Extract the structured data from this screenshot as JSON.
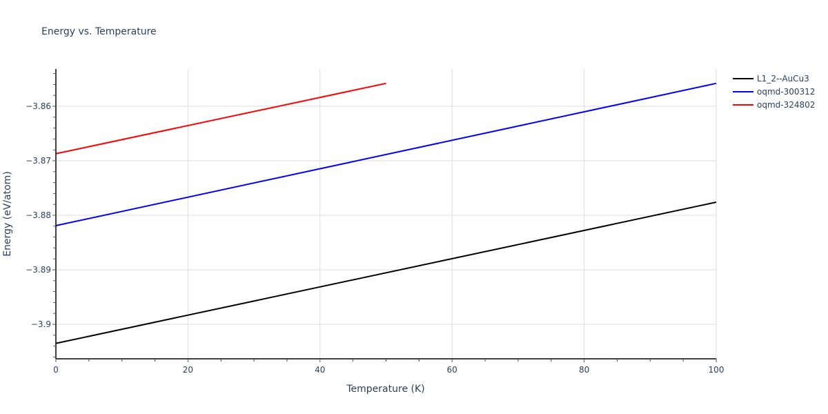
{
  "chart_data": {
    "type": "line",
    "title": "Energy vs. Temperature",
    "xlabel": "Temperature (K)",
    "ylabel": "Energy (eV/atom)",
    "xlim": [
      0,
      100
    ],
    "ylim": [
      -3.9065,
      -3.8432
    ],
    "x_ticks": [
      0,
      20,
      40,
      60,
      80,
      100
    ],
    "x_tick_labels": [
      "0",
      "20",
      "40",
      "60",
      "80",
      "100"
    ],
    "y_ticks": [
      -3.9,
      -3.89,
      -3.88,
      -3.87,
      -3.86
    ],
    "y_tick_labels": [
      "−3.9",
      "−3.89",
      "−3.88",
      "−3.87",
      "−3.86"
    ],
    "x_minor_step": 5,
    "y_minor_step": 0.002,
    "grid": true,
    "legend_position": "right-top",
    "series": [
      {
        "name": "L1_2--AuCu3",
        "color": "#000000",
        "x": [
          0,
          100
        ],
        "values": [
          -3.9035,
          -3.8776
        ]
      },
      {
        "name": "oqmd-300312",
        "color": "#0000ff",
        "x": [
          0,
          100
        ],
        "values": [
          -3.8819,
          -3.8558
        ]
      },
      {
        "name": "oqmd-324802",
        "color": "#ff0000",
        "x": [
          0,
          50
        ],
        "values": [
          -3.8687,
          -3.8558
        ]
      }
    ]
  }
}
